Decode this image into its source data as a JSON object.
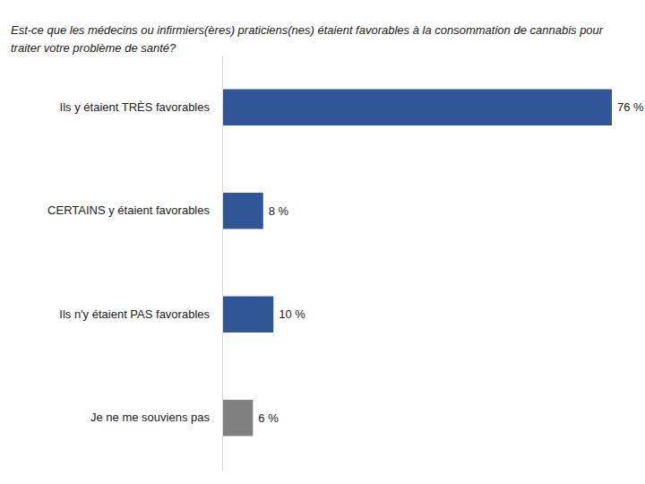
{
  "chart_data": {
    "type": "bar",
    "orientation": "horizontal",
    "title": "Est-ce que les médecins ou infirmiers(ères) praticiens(nes) étaient favorables à la consommation de cannabis pour traiter votre problème de santé?",
    "categories": [
      "Ils y étaient TRÈS favorables",
      "CERTAINS y étaient favorables",
      "Ils n'y étaient PAS favorables",
      "Je ne me souviens pas"
    ],
    "values": [
      76,
      8,
      10,
      6
    ],
    "value_labels": [
      "76 %",
      "8 %",
      "10 %",
      "6 %"
    ],
    "colors": [
      "#2F5597",
      "#2F5597",
      "#2F5597",
      "#808080"
    ],
    "data_labels": true,
    "tick_labels": "y",
    "grid": false
  }
}
